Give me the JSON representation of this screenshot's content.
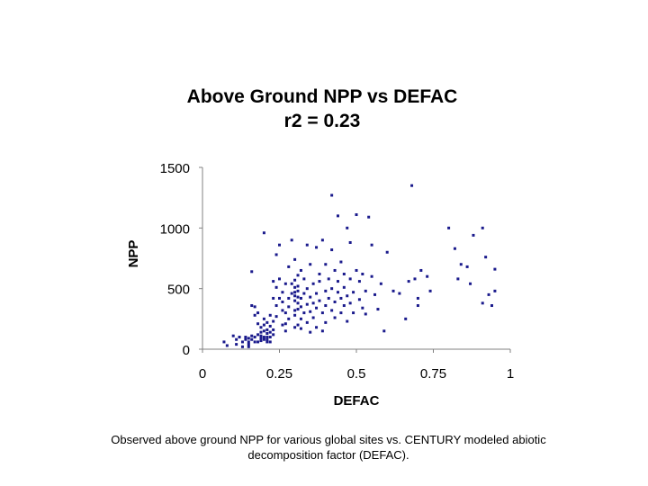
{
  "chart_data": {
    "type": "scatter",
    "title": "Above Ground NPP vs DEFAC",
    "subtitle": "r2 = 0.23",
    "xlabel": "DEFAC",
    "ylabel": "NPP",
    "xlim": [
      0,
      1
    ],
    "ylim": [
      0,
      1500
    ],
    "x_ticks": [
      0,
      0.25,
      0.5,
      0.75,
      1
    ],
    "x_tick_labels": [
      "0",
      "0.25",
      "0.5",
      "0.75",
      "1"
    ],
    "y_ticks": [
      0,
      500,
      1000,
      1500
    ],
    "y_tick_labels": [
      "0",
      "500",
      "1000",
      "1500"
    ],
    "grid": false,
    "legend": "none",
    "marker_color": "#1a1a8c",
    "series": [
      {
        "points": [
          [
            0.07,
            60
          ],
          [
            0.08,
            30
          ],
          [
            0.1,
            110
          ],
          [
            0.11,
            80
          ],
          [
            0.11,
            40
          ],
          [
            0.12,
            100
          ],
          [
            0.13,
            60
          ],
          [
            0.13,
            20
          ],
          [
            0.14,
            100
          ],
          [
            0.14,
            80
          ],
          [
            0.15,
            60
          ],
          [
            0.15,
            40
          ],
          [
            0.15,
            20
          ],
          [
            0.15,
            90
          ],
          [
            0.16,
            80
          ],
          [
            0.16,
            110
          ],
          [
            0.16,
            360
          ],
          [
            0.16,
            640
          ],
          [
            0.17,
            100
          ],
          [
            0.17,
            60
          ],
          [
            0.17,
            280
          ],
          [
            0.17,
            350
          ],
          [
            0.18,
            60
          ],
          [
            0.18,
            120
          ],
          [
            0.18,
            210
          ],
          [
            0.18,
            300
          ],
          [
            0.19,
            90
          ],
          [
            0.19,
            140
          ],
          [
            0.19,
            110
          ],
          [
            0.19,
            70
          ],
          [
            0.19,
            180
          ],
          [
            0.2,
            80
          ],
          [
            0.2,
            100
          ],
          [
            0.2,
            150
          ],
          [
            0.2,
            200
          ],
          [
            0.2,
            250
          ],
          [
            0.2,
            960
          ],
          [
            0.21,
            60
          ],
          [
            0.21,
            80
          ],
          [
            0.21,
            100
          ],
          [
            0.21,
            130
          ],
          [
            0.21,
            160
          ],
          [
            0.21,
            220
          ],
          [
            0.22,
            60
          ],
          [
            0.22,
            100
          ],
          [
            0.22,
            140
          ],
          [
            0.22,
            190
          ],
          [
            0.22,
            280
          ],
          [
            0.23,
            120
          ],
          [
            0.23,
            160
          ],
          [
            0.23,
            230
          ],
          [
            0.23,
            420
          ],
          [
            0.23,
            560
          ],
          [
            0.24,
            270
          ],
          [
            0.24,
            360
          ],
          [
            0.24,
            510
          ],
          [
            0.24,
            780
          ],
          [
            0.25,
            420
          ],
          [
            0.25,
            580
          ],
          [
            0.25,
            860
          ],
          [
            0.26,
            200
          ],
          [
            0.26,
            320
          ],
          [
            0.26,
            390
          ],
          [
            0.26,
            470
          ],
          [
            0.27,
            150
          ],
          [
            0.27,
            210
          ],
          [
            0.27,
            300
          ],
          [
            0.27,
            540
          ],
          [
            0.28,
            250
          ],
          [
            0.28,
            350
          ],
          [
            0.28,
            420
          ],
          [
            0.28,
            680
          ],
          [
            0.29,
            460
          ],
          [
            0.29,
            540
          ],
          [
            0.29,
            900
          ],
          [
            0.3,
            180
          ],
          [
            0.3,
            280
          ],
          [
            0.3,
            320
          ],
          [
            0.3,
            400
          ],
          [
            0.3,
            440
          ],
          [
            0.3,
            470
          ],
          [
            0.3,
            510
          ],
          [
            0.3,
            570
          ],
          [
            0.3,
            740
          ],
          [
            0.31,
            200
          ],
          [
            0.31,
            330
          ],
          [
            0.31,
            380
          ],
          [
            0.31,
            430
          ],
          [
            0.31,
            480
          ],
          [
            0.31,
            520
          ],
          [
            0.31,
            610
          ],
          [
            0.32,
            170
          ],
          [
            0.32,
            250
          ],
          [
            0.32,
            350
          ],
          [
            0.32,
            420
          ],
          [
            0.32,
            650
          ],
          [
            0.33,
            300
          ],
          [
            0.33,
            460
          ],
          [
            0.33,
            580
          ],
          [
            0.34,
            220
          ],
          [
            0.34,
            370
          ],
          [
            0.34,
            500
          ],
          [
            0.34,
            860
          ],
          [
            0.35,
            140
          ],
          [
            0.35,
            310
          ],
          [
            0.35,
            430
          ],
          [
            0.35,
            700
          ],
          [
            0.36,
            260
          ],
          [
            0.36,
            380
          ],
          [
            0.36,
            540
          ],
          [
            0.37,
            180
          ],
          [
            0.37,
            340
          ],
          [
            0.37,
            460
          ],
          [
            0.37,
            840
          ],
          [
            0.38,
            400
          ],
          [
            0.38,
            560
          ],
          [
            0.38,
            620
          ],
          [
            0.39,
            300
          ],
          [
            0.39,
            150
          ],
          [
            0.39,
            900
          ],
          [
            0.4,
            220
          ],
          [
            0.4,
            360
          ],
          [
            0.4,
            480
          ],
          [
            0.4,
            700
          ],
          [
            0.41,
            420
          ],
          [
            0.41,
            580
          ],
          [
            0.42,
            1270
          ],
          [
            0.42,
            320
          ],
          [
            0.42,
            500
          ],
          [
            0.42,
            820
          ],
          [
            0.43,
            260
          ],
          [
            0.43,
            390
          ],
          [
            0.43,
            650
          ],
          [
            0.44,
            470
          ],
          [
            0.44,
            560
          ],
          [
            0.44,
            1100
          ],
          [
            0.45,
            300
          ],
          [
            0.45,
            420
          ],
          [
            0.45,
            720
          ],
          [
            0.46,
            360
          ],
          [
            0.46,
            510
          ],
          [
            0.46,
            620
          ],
          [
            0.47,
            230
          ],
          [
            0.47,
            440
          ],
          [
            0.47,
            1000
          ],
          [
            0.48,
            380
          ],
          [
            0.48,
            580
          ],
          [
            0.48,
            880
          ],
          [
            0.49,
            300
          ],
          [
            0.49,
            470
          ],
          [
            0.5,
            650
          ],
          [
            0.5,
            1110
          ],
          [
            0.51,
            410
          ],
          [
            0.51,
            560
          ],
          [
            0.52,
            340
          ],
          [
            0.52,
            620
          ],
          [
            0.53,
            290
          ],
          [
            0.53,
            480
          ],
          [
            0.54,
            1090
          ],
          [
            0.55,
            600
          ],
          [
            0.55,
            860
          ],
          [
            0.56,
            450
          ],
          [
            0.57,
            330
          ],
          [
            0.58,
            540
          ],
          [
            0.59,
            150
          ],
          [
            0.6,
            800
          ],
          [
            0.62,
            480
          ],
          [
            0.64,
            460
          ],
          [
            0.66,
            250
          ],
          [
            0.67,
            560
          ],
          [
            0.68,
            1350
          ],
          [
            0.69,
            580
          ],
          [
            0.7,
            360
          ],
          [
            0.7,
            420
          ],
          [
            0.71,
            650
          ],
          [
            0.73,
            600
          ],
          [
            0.74,
            480
          ],
          [
            0.8,
            1000
          ],
          [
            0.82,
            830
          ],
          [
            0.83,
            580
          ],
          [
            0.84,
            700
          ],
          [
            0.86,
            680
          ],
          [
            0.87,
            540
          ],
          [
            0.88,
            940
          ],
          [
            0.91,
            1000
          ],
          [
            0.91,
            380
          ],
          [
            0.92,
            760
          ],
          [
            0.93,
            450
          ],
          [
            0.94,
            360
          ],
          [
            0.95,
            660
          ],
          [
            0.95,
            480
          ]
        ]
      }
    ]
  },
  "caption": {
    "line1": "Observed above ground NPP for various global sites vs. CENTURY modeled abiotic",
    "line2": "decomposition factor (DEFAC)."
  }
}
